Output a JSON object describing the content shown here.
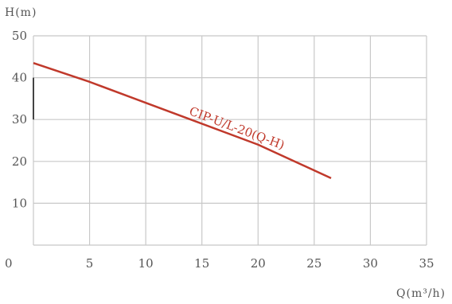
{
  "chart_data": {
    "type": "line",
    "xlabel": "Q(m³/h)",
    "ylabel": "H(m)",
    "xlim": [
      0,
      35
    ],
    "ylim": [
      0,
      50
    ],
    "xticks": [
      0,
      5,
      10,
      15,
      20,
      25,
      30,
      35
    ],
    "yticks": [
      10,
      20,
      30,
      40,
      50
    ],
    "x_tick_labels": [
      "0",
      "5",
      "10",
      "15",
      "20",
      "25",
      "30",
      "35"
    ],
    "y_tick_labels": [
      "10",
      "20",
      "30",
      "40",
      "50"
    ],
    "grid": true,
    "series": [
      {
        "name": "CIP-U/L-20(Q-H)",
        "color": "#c0392b",
        "x": [
          0,
          5,
          10,
          13.5,
          20,
          26.5
        ],
        "y": [
          43.5,
          39,
          34,
          30.5,
          24,
          16
        ]
      }
    ]
  }
}
